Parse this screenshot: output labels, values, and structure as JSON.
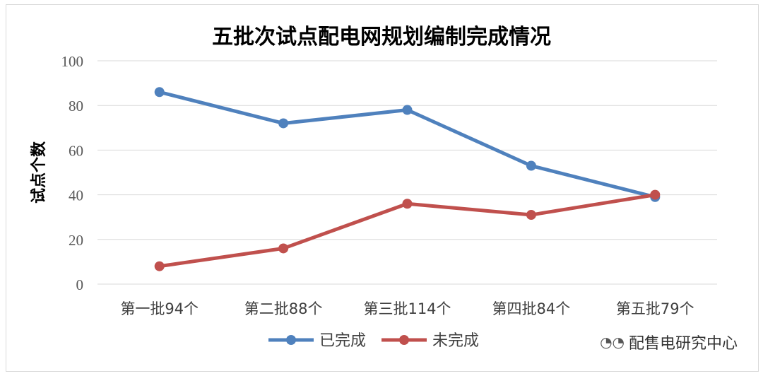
{
  "chart_data": {
    "type": "line",
    "title": "五批次试点配电网规划编制完成情况",
    "xlabel": "",
    "ylabel": "试点个数",
    "categories": [
      "第一批94个",
      "第二批88个",
      "第三批114个",
      "第四批84个",
      "第五批79个"
    ],
    "ylim": [
      0,
      100
    ],
    "yticks": [
      0,
      20,
      40,
      60,
      80,
      100
    ],
    "grid": true,
    "legend_position": "bottom",
    "series": [
      {
        "name": "已完成",
        "values": [
          86,
          72,
          78,
          53,
          39
        ],
        "color": "#4f81bd"
      },
      {
        "name": "未完成",
        "values": [
          8,
          16,
          36,
          31,
          40
        ],
        "color": "#c0504d"
      }
    ]
  },
  "watermark": {
    "text": "配售电研究中心",
    "icon": "wechat-icon"
  }
}
